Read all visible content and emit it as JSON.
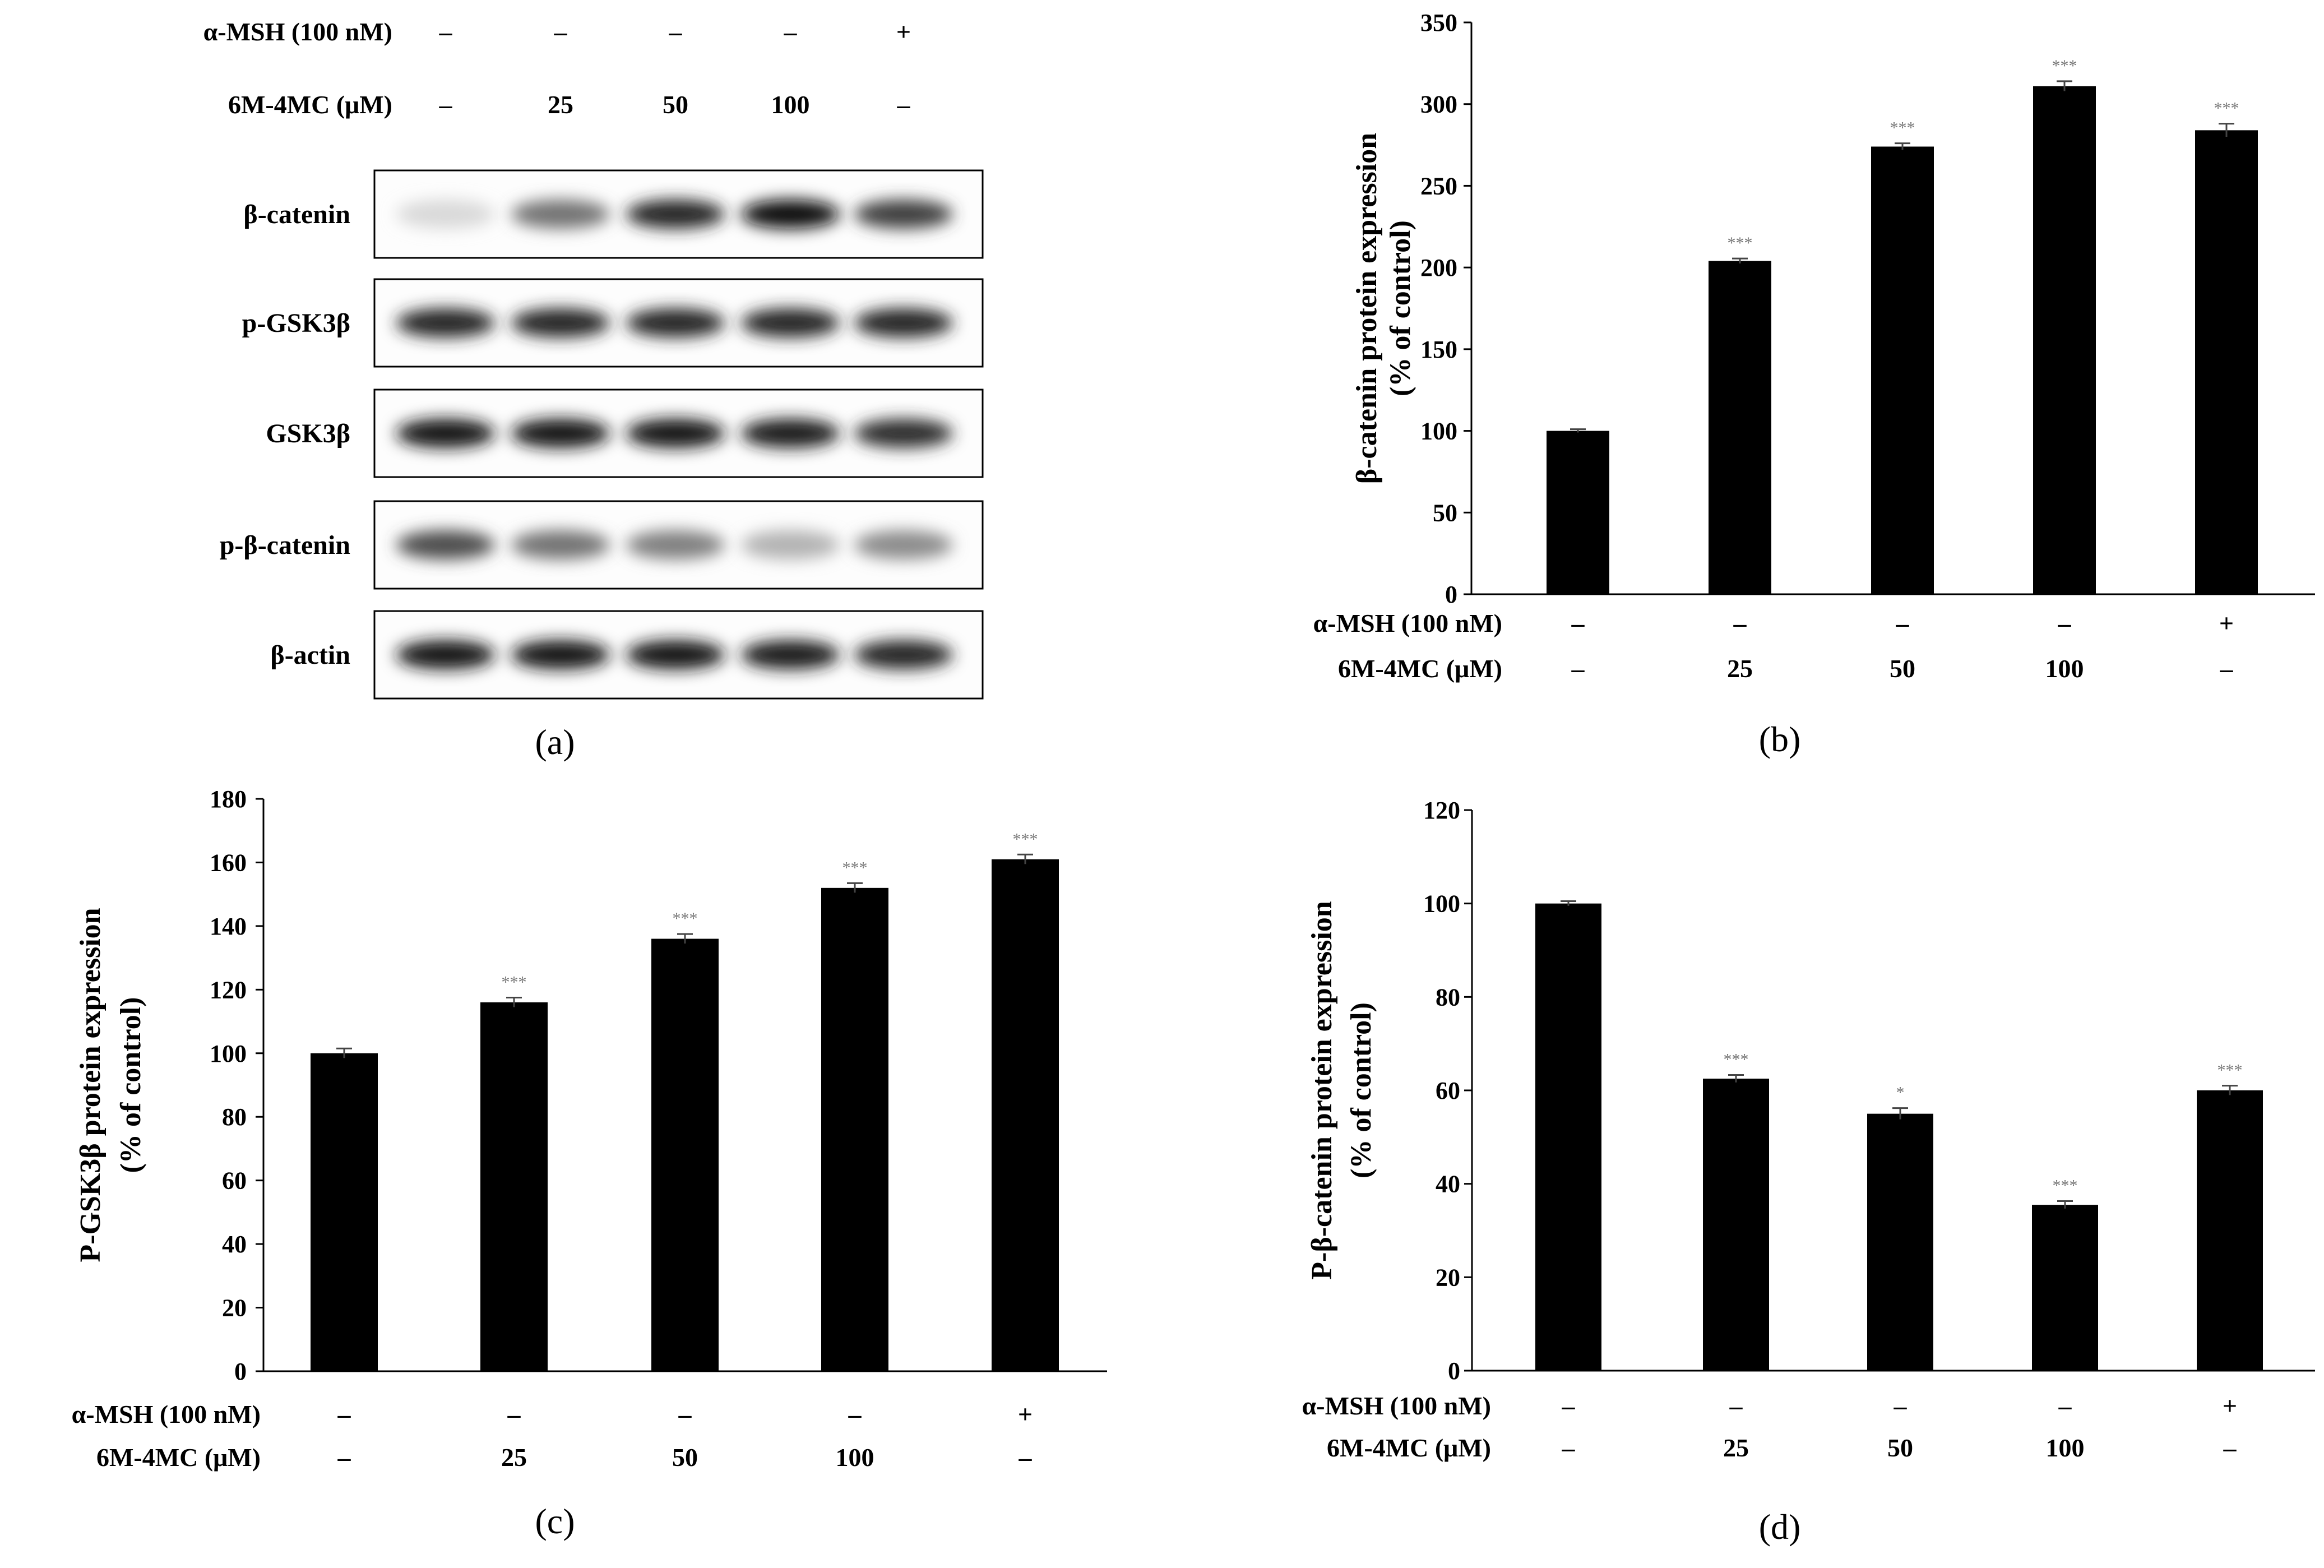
{
  "blot": {
    "caption": "(a)",
    "condition_rows": [
      {
        "label": "α-MSH (100 nM)",
        "values": [
          "–",
          "–",
          "–",
          "–",
          "+"
        ]
      },
      {
        "label": "6M-4MC (μM)",
        "values": [
          "–",
          "25",
          "50",
          "100",
          "–"
        ]
      }
    ],
    "proteins": [
      "β-catenin",
      "p-GSK3β",
      "GSK3β",
      "p-β-catenin",
      "β-actin"
    ],
    "band_intensity": [
      [
        0.15,
        0.55,
        0.85,
        0.95,
        0.75
      ],
      [
        0.85,
        0.85,
        0.85,
        0.85,
        0.85
      ],
      [
        0.9,
        0.9,
        0.9,
        0.88,
        0.82
      ],
      [
        0.7,
        0.55,
        0.5,
        0.3,
        0.45
      ],
      [
        0.9,
        0.9,
        0.9,
        0.88,
        0.85
      ]
    ]
  },
  "chart_data": [
    {
      "id": "b",
      "type": "bar",
      "caption": "(b)",
      "ylabel_line1": "β-catenin protein expression",
      "ylabel_line2": "(% of control)",
      "ylim": [
        0,
        350
      ],
      "yticks": [
        0,
        50,
        100,
        150,
        200,
        250,
        300,
        350
      ],
      "values": [
        100,
        204,
        274,
        311,
        284
      ],
      "errors": [
        1,
        1.5,
        2,
        3,
        4
      ],
      "significance": [
        "",
        "***",
        "***",
        "***",
        "***"
      ],
      "condition_rows": [
        {
          "label": "α-MSH (100 nM)",
          "values": [
            "–",
            "–",
            "–",
            "–",
            "+"
          ]
        },
        {
          "label": "6M-4MC (μM)",
          "values": [
            "–",
            "25",
            "50",
            "100",
            "–"
          ]
        }
      ]
    },
    {
      "id": "c",
      "type": "bar",
      "caption": "(c)",
      "ylabel_line1": "P-GSK3β protein expression",
      "ylabel_line2": "(% of control)",
      "ylim": [
        0,
        180
      ],
      "yticks": [
        0,
        20,
        40,
        60,
        80,
        100,
        120,
        140,
        160,
        180
      ],
      "values": [
        100,
        116,
        136,
        152,
        161
      ],
      "errors": [
        1.5,
        1.5,
        1.5,
        1.5,
        1.5
      ],
      "significance": [
        "",
        "***",
        "***",
        "***",
        "***"
      ],
      "condition_rows": [
        {
          "label": "α-MSH (100 nM)",
          "values": [
            "–",
            "–",
            "–",
            "–",
            "+"
          ]
        },
        {
          "label": "6M-4MC (μM)",
          "values": [
            "–",
            "25",
            "50",
            "100",
            "–"
          ]
        }
      ]
    },
    {
      "id": "d",
      "type": "bar",
      "caption": "(d)",
      "ylabel_line1": "P-β-catenin  protein expression",
      "ylabel_line2": "(% of control)",
      "ylim": [
        0,
        120
      ],
      "yticks": [
        0,
        20,
        40,
        60,
        80,
        100,
        120
      ],
      "values": [
        100,
        62.5,
        55,
        35.5,
        60
      ],
      "errors": [
        0.5,
        0.8,
        1.2,
        0.8,
        1.0
      ],
      "significance": [
        "",
        "***",
        "*",
        "***",
        "***"
      ],
      "condition_rows": [
        {
          "label": "α-MSH (100 nM)",
          "values": [
            "–",
            "–",
            "–",
            "–",
            "+"
          ]
        },
        {
          "label": "6M-4MC (μM)",
          "values": [
            "–",
            "25",
            "50",
            "100",
            "–"
          ]
        }
      ]
    }
  ]
}
